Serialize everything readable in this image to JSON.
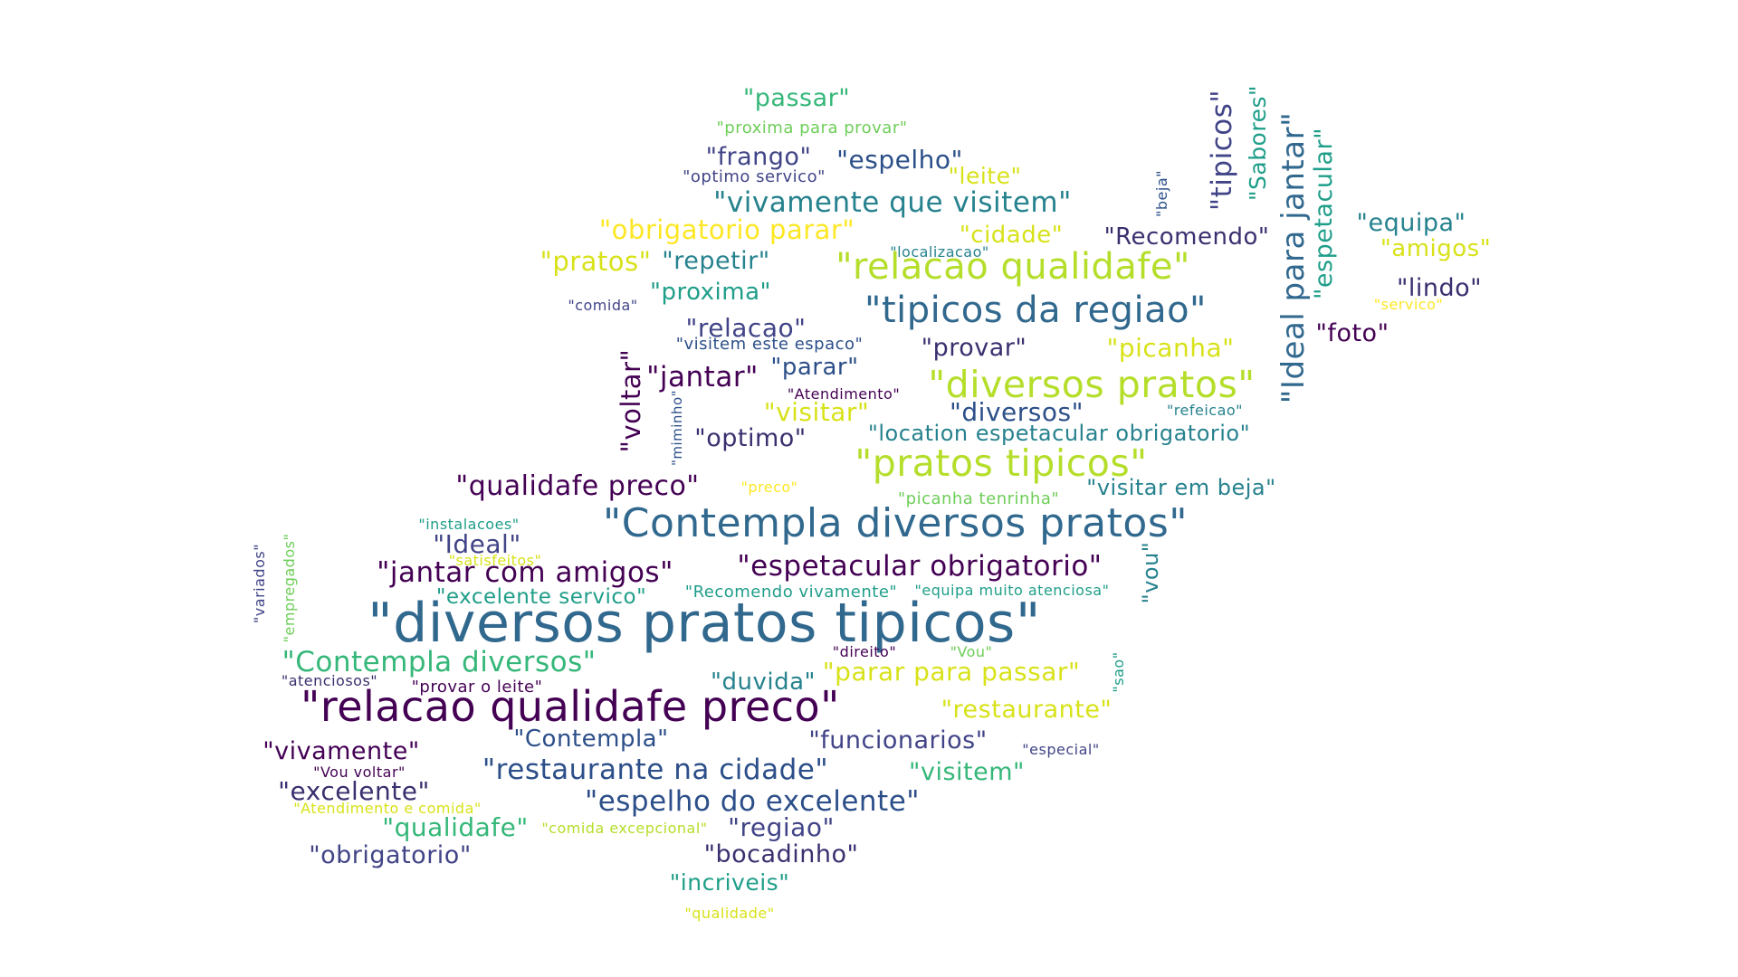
{
  "wordcloud": {
    "palette": {
      "c1": "#440154",
      "c2": "#3b2f6f",
      "c3": "#414487",
      "c4": "#2c4f89",
      "c5": "#31688e",
      "c6": "#26828e",
      "c7": "#1f9e89",
      "c8": "#35b779",
      "c9": "#6ece58",
      "c10": "#b5de2b",
      "c11": "#d8e219",
      "c12": "#fde725"
    },
    "words": [
      {
        "id": "w-passar",
        "text": "\"passar\"",
        "color": "c8"
      },
      {
        "id": "w-proxima-para-provar",
        "text": "\"proxima para provar\"",
        "color": "c9"
      },
      {
        "id": "w-frango",
        "text": "\"frango\"",
        "color": "c3"
      },
      {
        "id": "w-espelho",
        "text": "\"espelho\"",
        "color": "c4"
      },
      {
        "id": "w-optimo-servico",
        "text": "\"optimo servico\"",
        "color": "c3"
      },
      {
        "id": "w-leite",
        "text": "\"leite\"",
        "color": "c11"
      },
      {
        "id": "w-vivamente-que-visitem",
        "text": "\"vivamente que visitem\"",
        "color": "c6"
      },
      {
        "id": "w-obrigatorio-parar",
        "text": "\"obrigatorio parar\"",
        "color": "c12"
      },
      {
        "id": "w-cidade",
        "text": "\"cidade\"",
        "color": "c11"
      },
      {
        "id": "w-recomendo",
        "text": "\"Recomendo\"",
        "color": "c2"
      },
      {
        "id": "w-localizacao",
        "text": "\"localizacao\"",
        "color": "c6"
      },
      {
        "id": "w-pratos",
        "text": "\"pratos\"",
        "color": "c11"
      },
      {
        "id": "w-repetir",
        "text": "\"repetir\"",
        "color": "c6"
      },
      {
        "id": "w-relacao-qualidafe",
        "text": "\"relacao qualidafe\"",
        "color": "c10"
      },
      {
        "id": "w-proxima",
        "text": "\"proxima\"",
        "color": "c7"
      },
      {
        "id": "w-comida",
        "text": "\"comida\"",
        "color": "c3"
      },
      {
        "id": "w-tipicos-da-regiao",
        "text": "\"tipicos da regiao\"",
        "color": "c5"
      },
      {
        "id": "w-relacao",
        "text": "\"relacao\"",
        "color": "c3"
      },
      {
        "id": "w-visitem-este-espaco",
        "text": "\"visitem este espaco\"",
        "color": "c4"
      },
      {
        "id": "w-provar",
        "text": "\"provar\"",
        "color": "c2"
      },
      {
        "id": "w-picanha",
        "text": "\"picanha\"",
        "color": "c11"
      },
      {
        "id": "w-jantar",
        "text": "\"jantar\"",
        "color": "c1"
      },
      {
        "id": "w-parar",
        "text": "\"parar\"",
        "color": "c4"
      },
      {
        "id": "w-atendimento",
        "text": "\"Atendimento\"",
        "color": "c1"
      },
      {
        "id": "w-diversos-pratos",
        "text": "\"diversos pratos\"",
        "color": "c10"
      },
      {
        "id": "w-visitar",
        "text": "\"visitar\"",
        "color": "c11"
      },
      {
        "id": "w-diversos",
        "text": "\"diversos\"",
        "color": "c4"
      },
      {
        "id": "w-refeicao",
        "text": "\"refeicao\"",
        "color": "c6"
      },
      {
        "id": "w-optimo",
        "text": "\"optimo\"",
        "color": "c2"
      },
      {
        "id": "w-location-espetacular-obrigatorio",
        "text": "\"location espetacular obrigatorio\"",
        "color": "c6"
      },
      {
        "id": "w-foto",
        "text": "\"foto\"",
        "color": "c1"
      },
      {
        "id": "w-equipa",
        "text": "\"equipa\"",
        "color": "c6"
      },
      {
        "id": "w-amigos",
        "text": "\"amigos\"",
        "color": "c11"
      },
      {
        "id": "w-lindo",
        "text": "\"lindo\"",
        "color": "c2"
      },
      {
        "id": "w-servico",
        "text": "\"servico\"",
        "color": "c12"
      },
      {
        "id": "w-pratos-tipicos",
        "text": "\"pratos tipicos\"",
        "color": "c10"
      },
      {
        "id": "w-qualidafe-preco",
        "text": "\"qualidafe preco\"",
        "color": "c1"
      },
      {
        "id": "w-preco",
        "text": "\"preco\"",
        "color": "c12"
      },
      {
        "id": "w-picanha-tenrinha",
        "text": "\"picanha tenrinha\"",
        "color": "c9"
      },
      {
        "id": "w-visitar-em-beja",
        "text": "\"visitar em beja\"",
        "color": "c6"
      },
      {
        "id": "w-instalacoes",
        "text": "\"instalacoes\"",
        "color": "c7"
      },
      {
        "id": "w-contempla-diversos-pratos",
        "text": "\"Contempla diversos pratos\"",
        "color": "c5"
      },
      {
        "id": "w-ideal",
        "text": "\"Ideal\"",
        "color": "c3"
      },
      {
        "id": "w-satisfeitos",
        "text": "\"satisfeitos\"",
        "color": "c11"
      },
      {
        "id": "w-espetacular-obrigatorio",
        "text": "\"espetacular obrigatorio\"",
        "color": "c1"
      },
      {
        "id": "w-jantar-com-amigos",
        "text": "\"jantar com amigos\"",
        "color": "c1"
      },
      {
        "id": "w-recomendo-vivamente",
        "text": "\"Recomendo vivamente\"",
        "color": "c7"
      },
      {
        "id": "w-equipa-muito-atenciosa",
        "text": "\"equipa muito atenciosa\"",
        "color": "c7"
      },
      {
        "id": "w-excelente-servico",
        "text": "\"excelente servico\"",
        "color": "c7"
      },
      {
        "id": "w-diversos-pratos-tipicos",
        "text": "\"diversos pratos tipicos\"",
        "color": "c5"
      },
      {
        "id": "w-direito",
        "text": "\"direito\"",
        "color": "c1"
      },
      {
        "id": "w-vou-cap",
        "text": "\"Vou\"",
        "color": "c9"
      },
      {
        "id": "w-contempla-diversos",
        "text": "\"Contempla diversos\"",
        "color": "c8"
      },
      {
        "id": "w-atenciosos",
        "text": "\"atenciosos\"",
        "color": "c2"
      },
      {
        "id": "w-provar-o-leite",
        "text": "\"provar o leite\"",
        "color": "c1"
      },
      {
        "id": "w-duvida",
        "text": "\"duvida\"",
        "color": "c6"
      },
      {
        "id": "w-parar-para-passar",
        "text": "\"parar para passar\"",
        "color": "c11"
      },
      {
        "id": "w-relacao-qualidafe-preco",
        "text": "\"relacao qualidafe preco\"",
        "color": "c1"
      },
      {
        "id": "w-restaurante",
        "text": "\"restaurante\"",
        "color": "c11"
      },
      {
        "id": "w-vivamente",
        "text": "\"vivamente\"",
        "color": "c1"
      },
      {
        "id": "w-contempla",
        "text": "\"Contempla\"",
        "color": "c4"
      },
      {
        "id": "w-funcionarios",
        "text": "\"funcionarios\"",
        "color": "c3"
      },
      {
        "id": "w-especial",
        "text": "\"especial\"",
        "color": "c3"
      },
      {
        "id": "w-vou-voltar",
        "text": "\"Vou voltar\"",
        "color": "c1"
      },
      {
        "id": "w-restaurante-na-cidade",
        "text": "\"restaurante na cidade\"",
        "color": "c4"
      },
      {
        "id": "w-visitem",
        "text": "\"visitem\"",
        "color": "c8"
      },
      {
        "id": "w-excelente",
        "text": "\"excelente\"",
        "color": "c2"
      },
      {
        "id": "w-espelho-do-excelente",
        "text": "\"espelho do excelente\"",
        "color": "c4"
      },
      {
        "id": "w-atendimento-e-comida",
        "text": "\"Atendimento e comida\"",
        "color": "c11"
      },
      {
        "id": "w-qualidafe",
        "text": "\"qualidafe\"",
        "color": "c8"
      },
      {
        "id": "w-comida-excepcional",
        "text": "\"comida excepcional\"",
        "color": "c10"
      },
      {
        "id": "w-regiao",
        "text": "\"regiao\"",
        "color": "c3"
      },
      {
        "id": "w-obrigatorio",
        "text": "\"obrigatorio\"",
        "color": "c3"
      },
      {
        "id": "w-bocadinho",
        "text": "\"bocadinho\"",
        "color": "c2"
      },
      {
        "id": "w-incriveis",
        "text": "\"incriveis\"",
        "color": "c7"
      },
      {
        "id": "w-qualidade",
        "text": "\"qualidade\"",
        "color": "c11"
      },
      {
        "id": "w-tipicos",
        "text": "\"tipicos\"",
        "color": "c3"
      },
      {
        "id": "w-sabores",
        "text": "\"Sabores\"",
        "color": "c7"
      },
      {
        "id": "w-ideal-para-jantar",
        "text": "\"Ideal para jantar\"",
        "color": "c5"
      },
      {
        "id": "w-espetacular",
        "text": "\"espetacular\"",
        "color": "c7"
      },
      {
        "id": "w-beja",
        "text": "\"beja\"",
        "color": "c4"
      },
      {
        "id": "w-voltar",
        "text": "\"voltar\"",
        "color": "c1"
      },
      {
        "id": "w-miminho",
        "text": "\"miminho\"",
        "color": "c4"
      },
      {
        "id": "w-vou",
        "text": "\"vou\"",
        "color": "c6"
      },
      {
        "id": "w-variados",
        "text": "\"variados\"",
        "color": "c3"
      },
      {
        "id": "w-empregados",
        "text": "\"empregados\"",
        "color": "c9"
      },
      {
        "id": "w-sao",
        "text": "\"sao\"",
        "color": "c7"
      }
    ]
  }
}
